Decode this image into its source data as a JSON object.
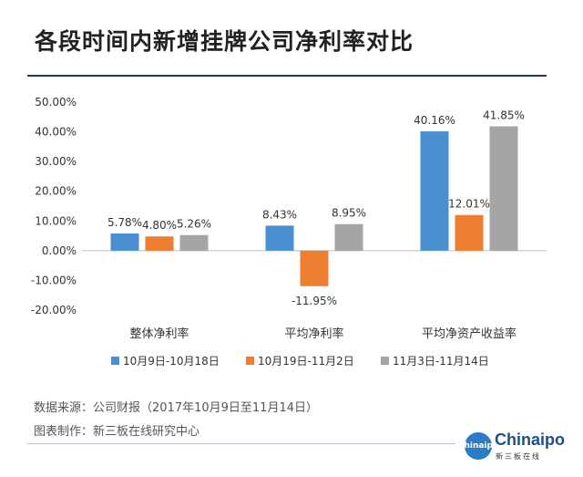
{
  "header": {
    "title": "各段时间内新增挂牌公司净利率对比"
  },
  "chart_data": {
    "type": "bar",
    "title": "各段时间内新增挂牌公司净利率对比",
    "categories": [
      "整体净利率",
      "平均净利率",
      "平均净资产收益率"
    ],
    "series": [
      {
        "name": "10月9日-10月18日",
        "values": [
          5.78,
          8.43,
          40.16
        ],
        "labels": [
          "5.78%",
          "8.43%",
          "40.16%"
        ]
      },
      {
        "name": "10月19日-11月2日",
        "values": [
          4.8,
          -11.95,
          12.01
        ],
        "labels": [
          "4.80%",
          "-11.95%",
          "12.01%"
        ]
      },
      {
        "name": "11月3日-11月14日",
        "values": [
          5.26,
          8.95,
          41.85
        ],
        "labels": [
          "5.26%",
          "8.95%",
          "41.85%"
        ]
      }
    ],
    "colors": [
      "#4a8fd2",
      "#ed7d31",
      "#a5a5a5"
    ],
    "ylim": [
      -20,
      50
    ],
    "yticks": [
      50,
      40,
      30,
      20,
      10,
      0,
      -10,
      -20
    ],
    "ytick_labels": [
      "50.00%",
      "40.00%",
      "30.00%",
      "20.00%",
      "10.00%",
      "0.00%",
      "-10.00%",
      "-20.00%"
    ],
    "xlabel": "",
    "ylabel": "",
    "legend_position": "bottom",
    "grid": false
  },
  "footer": {
    "source": "数据来源：公司财报（2017年10月9日至11月14日）",
    "author": "图表制作：新三板在线研究中心"
  },
  "logo": {
    "badge": "Chinaipo",
    "word": "Chinaipo",
    "subtitle": "新三板在线"
  }
}
